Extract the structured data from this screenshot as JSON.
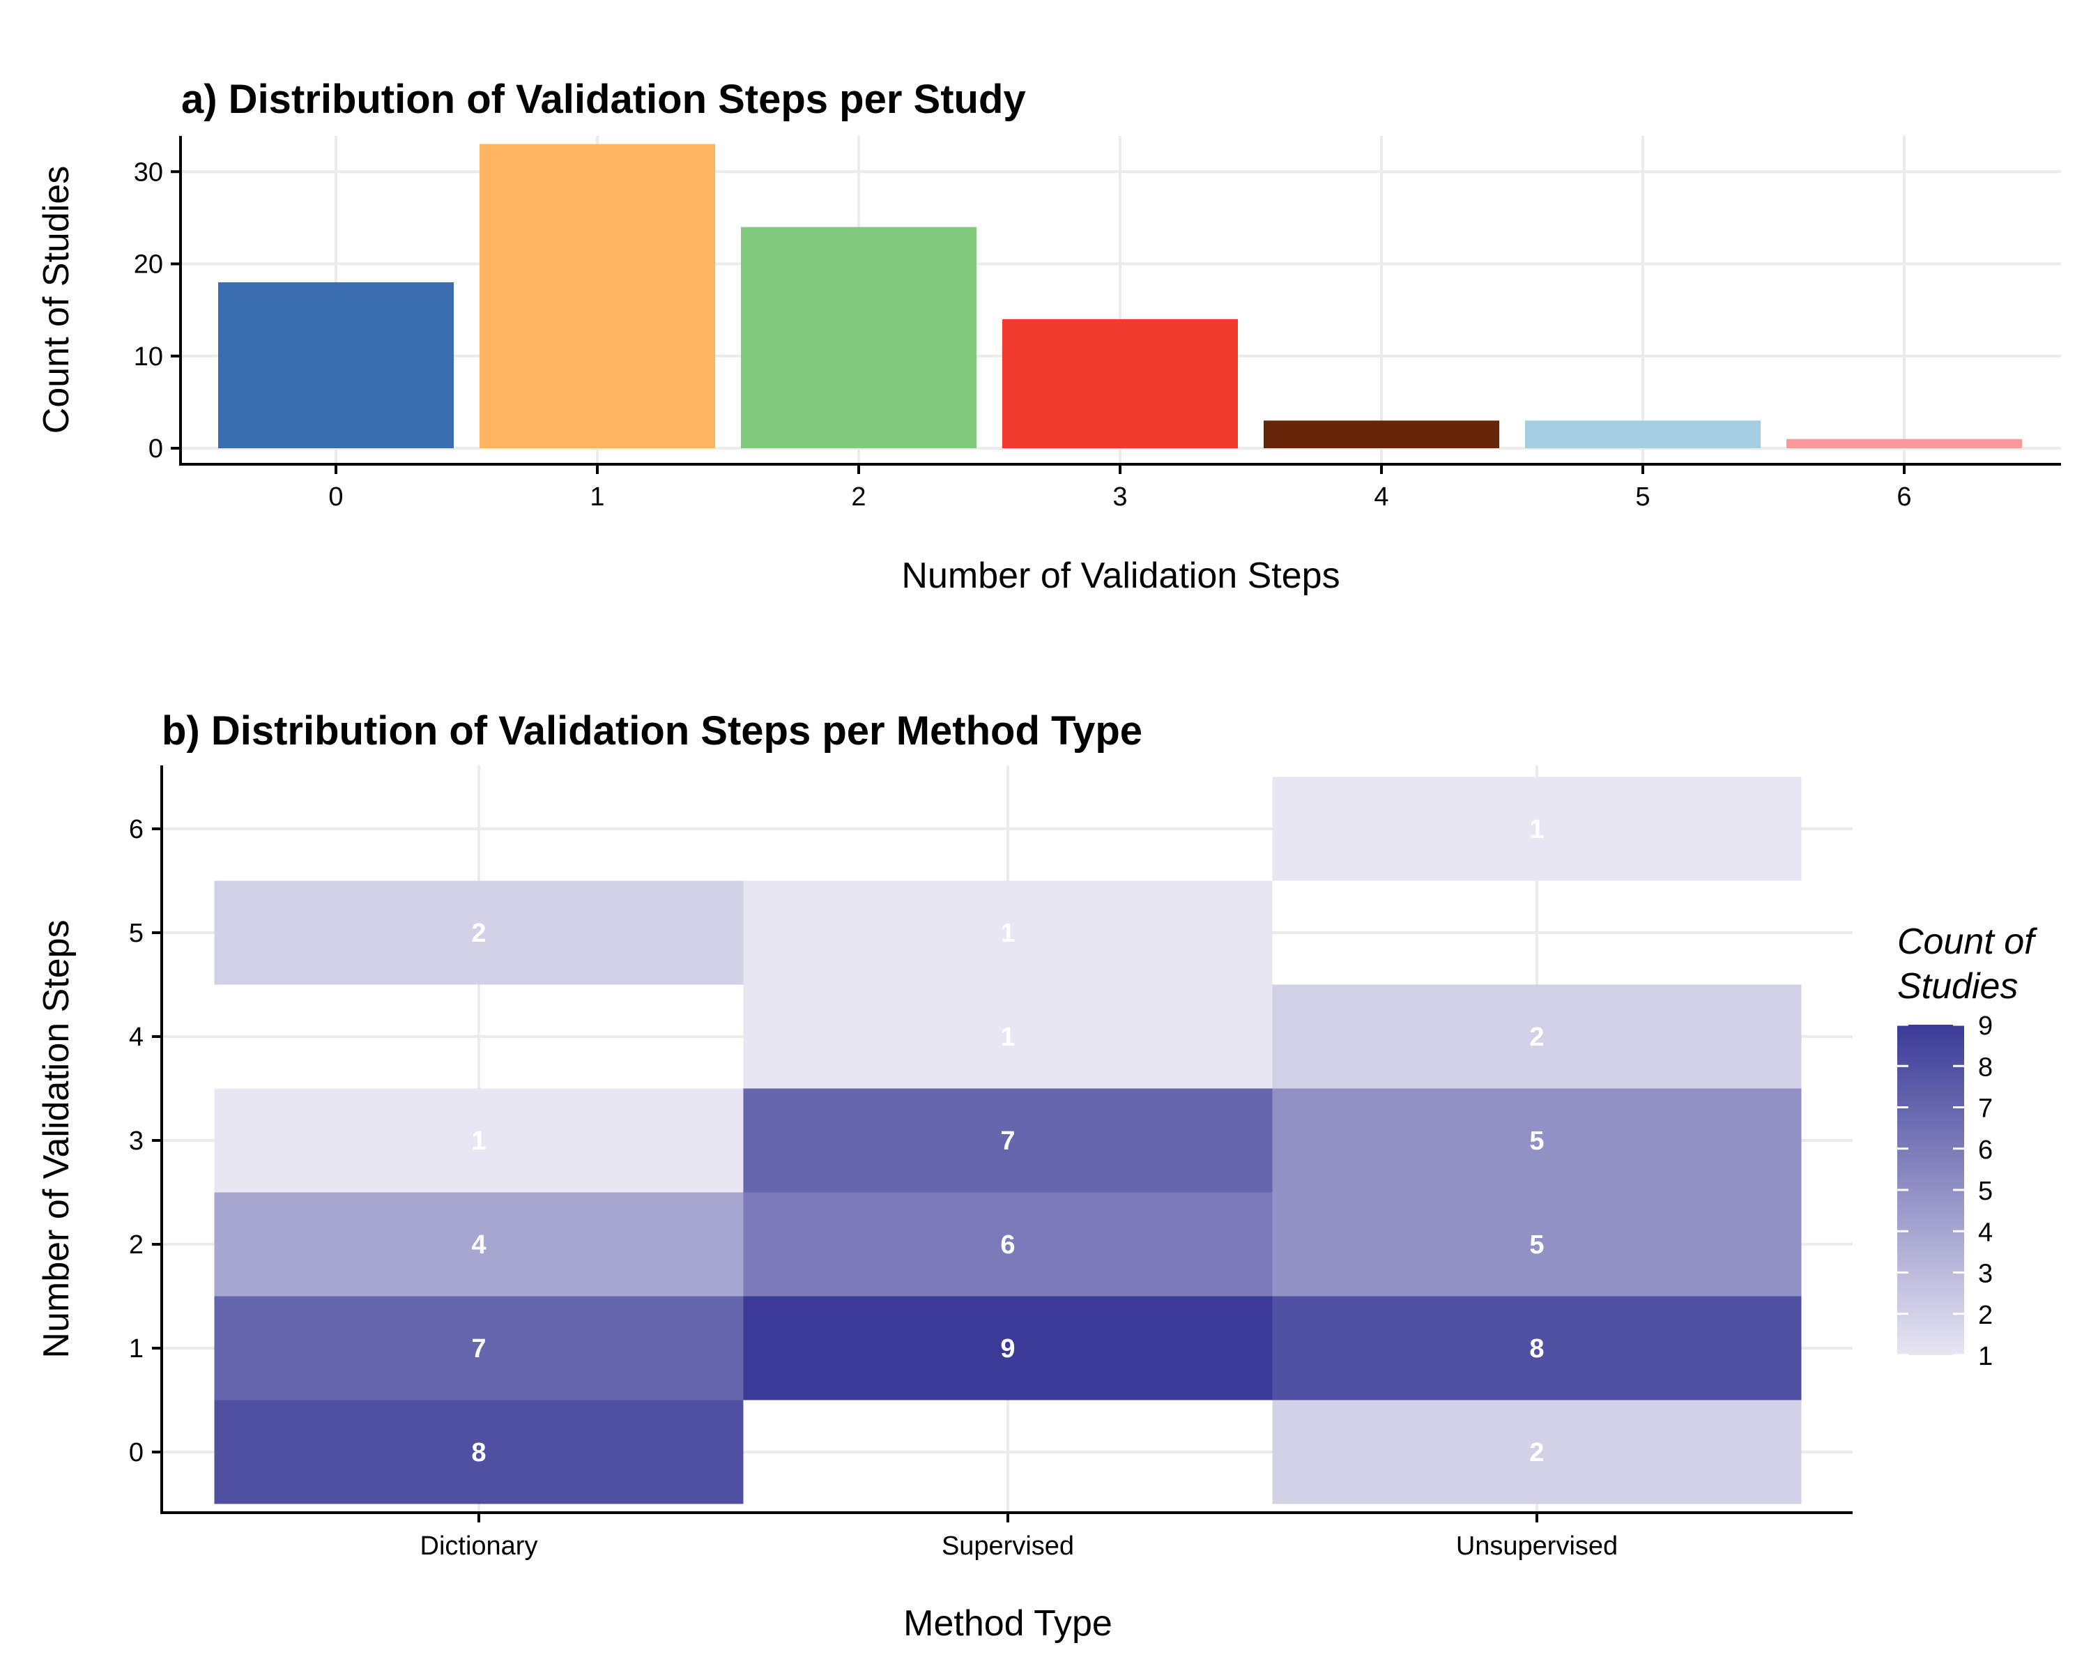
{
  "chart_data": [
    {
      "type": "bar",
      "title": "a) Distribution of Validation Steps per Study",
      "xlabel": "Number of Validation Steps",
      "ylabel": "Count of Studies",
      "categories": [
        "0",
        "1",
        "2",
        "3",
        "4",
        "5",
        "6"
      ],
      "values": [
        18,
        33,
        24,
        14,
        3,
        3,
        1
      ],
      "colors": [
        "#3A6DB0",
        "#FCB461",
        "#82CA7D",
        "#EF3B2C",
        "#652508",
        "#A6CEE3",
        "#F99999"
      ],
      "ylim": [
        0,
        35
      ],
      "yticks": [
        "0",
        "10",
        "20",
        "30"
      ],
      "grid": true,
      "legend": "none"
    },
    {
      "type": "heatmap",
      "title": "b) Distribution of Validation Steps per Method Type",
      "xlabel": "Method Type",
      "ylabel": "Number of Validation Steps",
      "x_categories": [
        "Dictionary",
        "Supervised",
        "Unsupervised"
      ],
      "y_categories": [
        "0",
        "1",
        "2",
        "3",
        "4",
        "5",
        "6"
      ],
      "cells": [
        {
          "x": "Dictionary",
          "y": "0",
          "value": 8,
          "label": "8"
        },
        {
          "x": "Dictionary",
          "y": "1",
          "value": 7,
          "label": "7"
        },
        {
          "x": "Dictionary",
          "y": "2",
          "value": 4,
          "label": "4"
        },
        {
          "x": "Dictionary",
          "y": "3",
          "value": 1,
          "label": "1"
        },
        {
          "x": "Dictionary",
          "y": "5",
          "value": 2,
          "label": "2"
        },
        {
          "x": "Supervised",
          "y": "1",
          "value": 9,
          "label": "9"
        },
        {
          "x": "Supervised",
          "y": "2",
          "value": 6,
          "label": "6"
        },
        {
          "x": "Supervised",
          "y": "3",
          "value": 7,
          "label": "7"
        },
        {
          "x": "Supervised",
          "y": "4",
          "value": 1,
          "label": "1"
        },
        {
          "x": "Supervised",
          "y": "5",
          "value": 1,
          "label": "1"
        },
        {
          "x": "Unsupervised",
          "y": "0",
          "value": 2,
          "label": "2"
        },
        {
          "x": "Unsupervised",
          "y": "1",
          "value": 8,
          "label": "8"
        },
        {
          "x": "Unsupervised",
          "y": "2",
          "value": 5,
          "label": "5"
        },
        {
          "x": "Unsupervised",
          "y": "3",
          "value": 5,
          "label": "5"
        },
        {
          "x": "Unsupervised",
          "y": "4",
          "value": 2,
          "label": "2"
        },
        {
          "x": "Unsupervised",
          "y": "6",
          "value": 1,
          "label": "1"
        }
      ],
      "color_scale": {
        "low": "#E8E6F3",
        "high": "#3A3B97",
        "min": 1,
        "max": 9
      },
      "legend": {
        "title_lines": [
          "Count of",
          "Studies"
        ],
        "ticks": [
          "1",
          "2",
          "3",
          "4",
          "5",
          "6",
          "7",
          "8",
          "9"
        ],
        "placement": "right"
      },
      "grid": true
    }
  ]
}
